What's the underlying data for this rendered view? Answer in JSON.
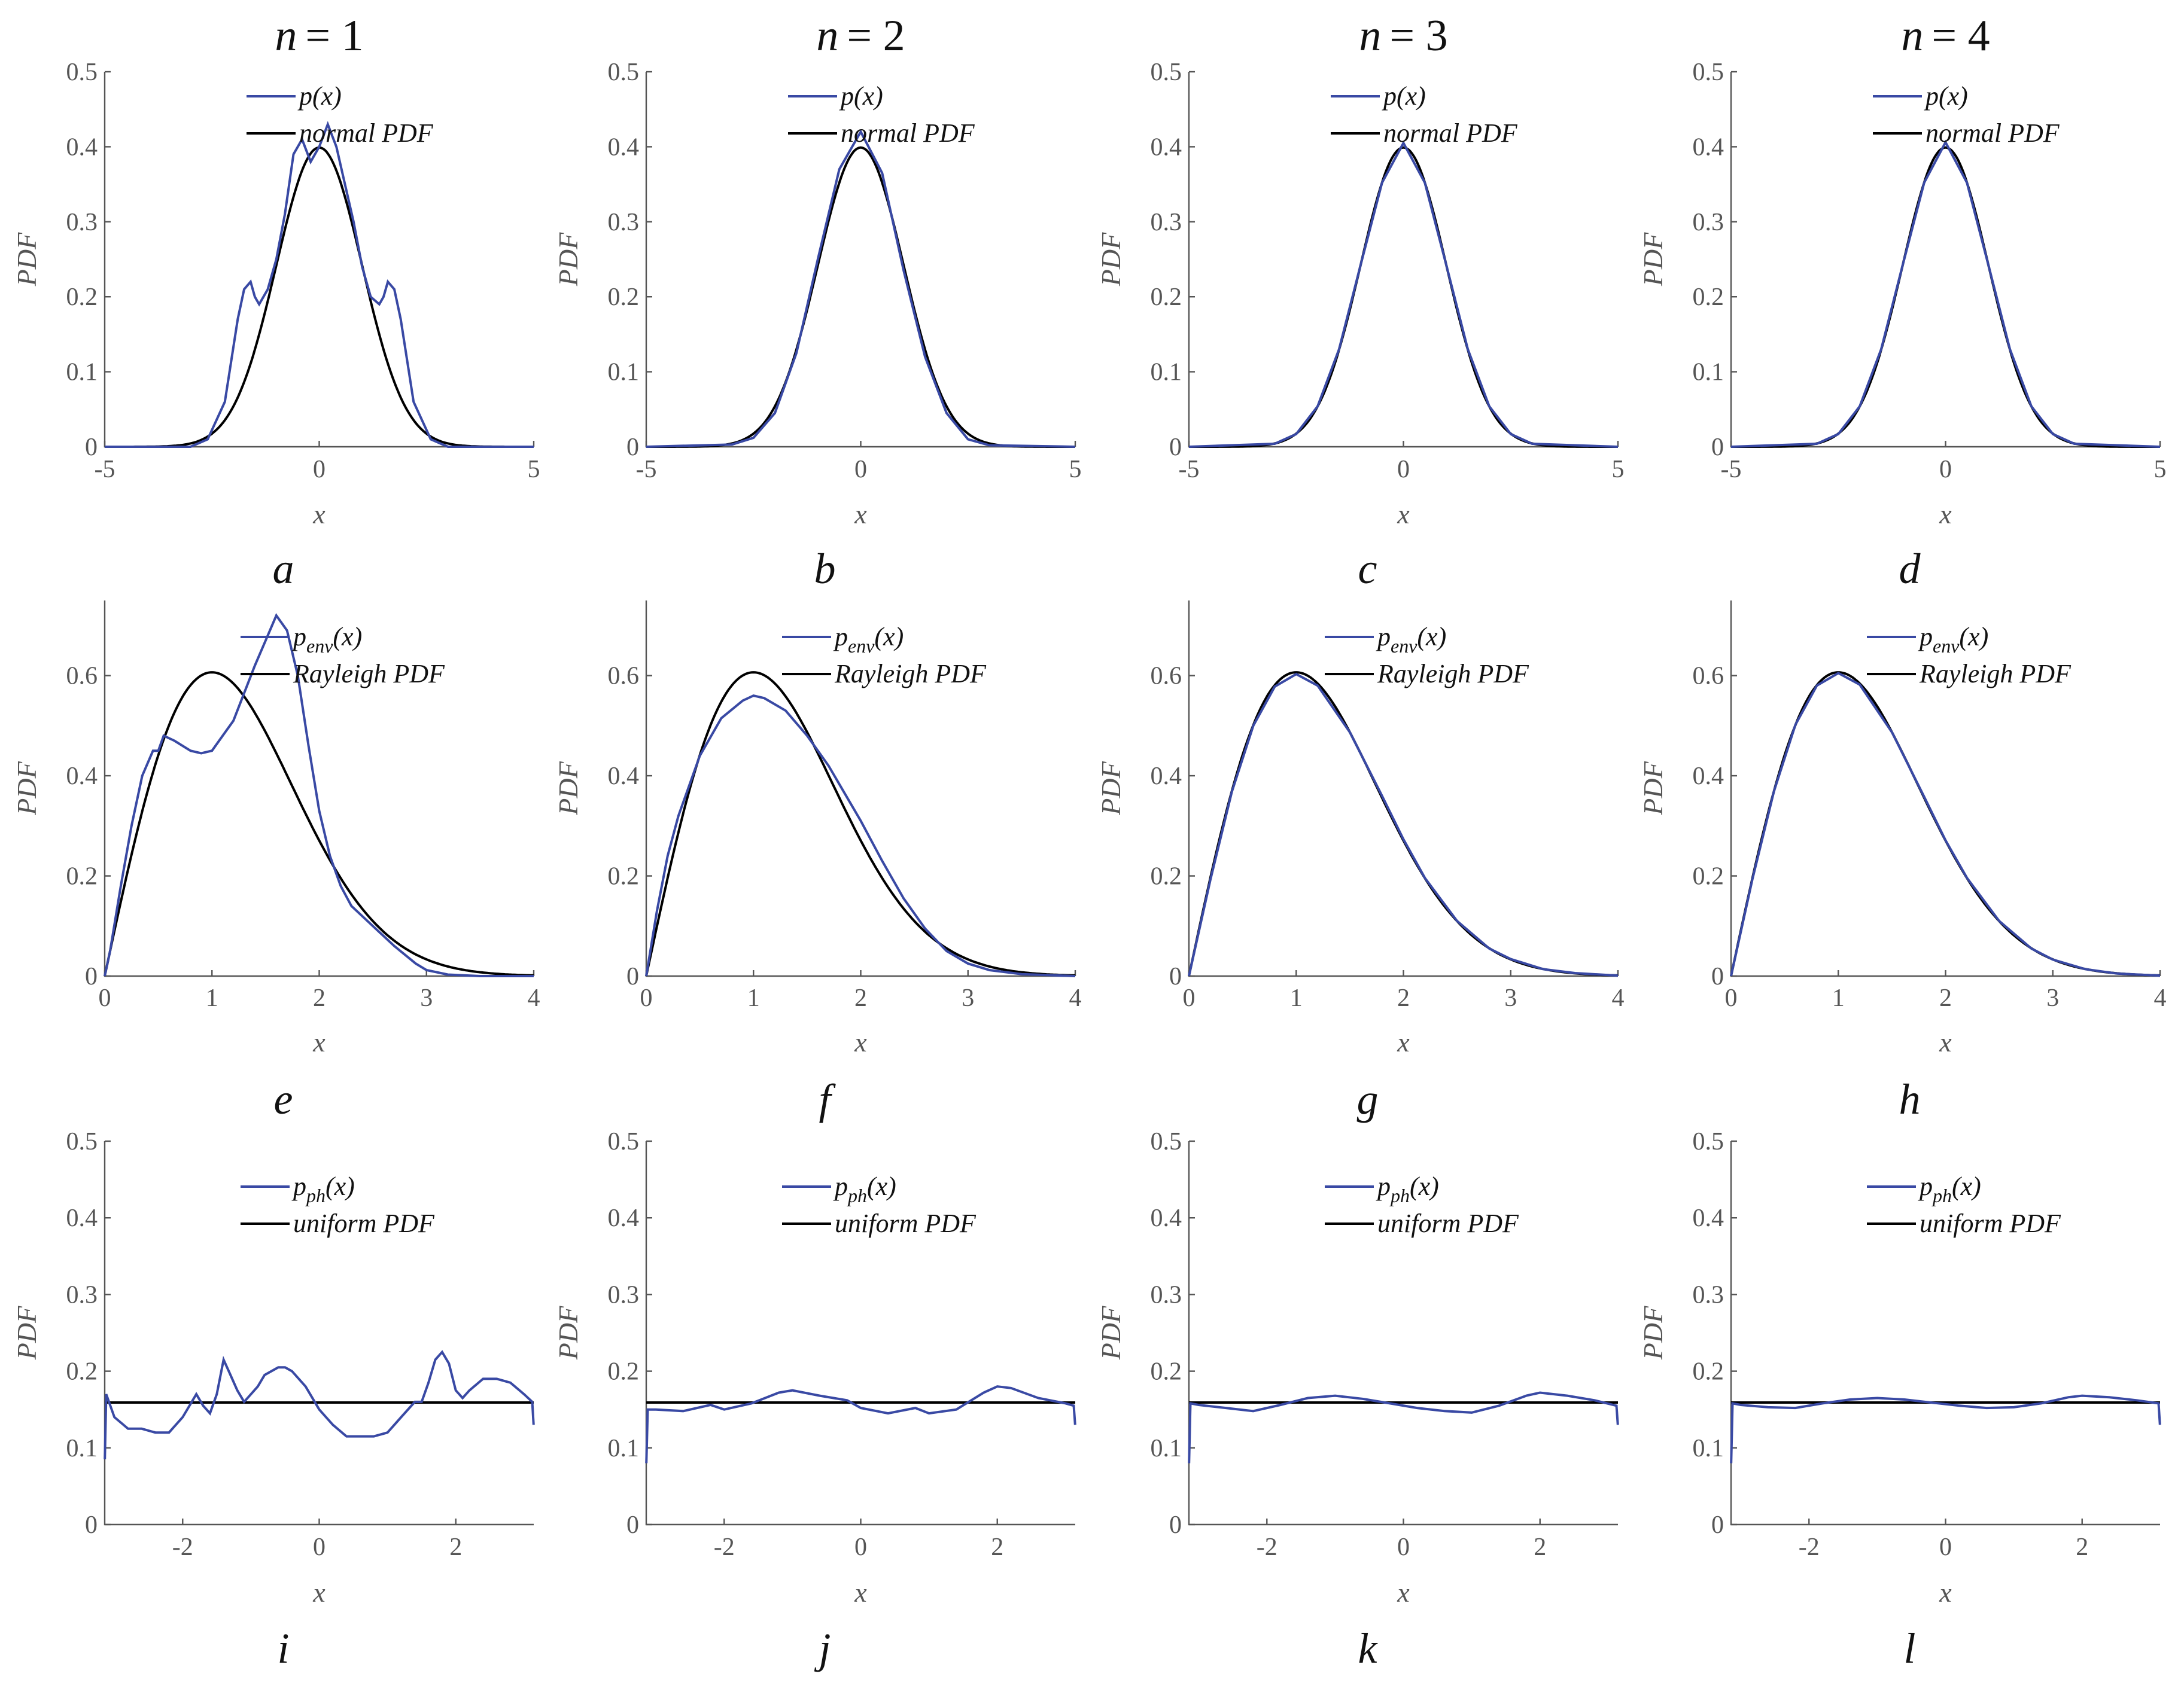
{
  "column_titles": [
    {
      "var": "n",
      "eq": "= 1"
    },
    {
      "var": "n",
      "eq": "= 2"
    },
    {
      "var": "n",
      "eq": "= 3"
    },
    {
      "var": "n",
      "eq": "= 4"
    }
  ],
  "colors": {
    "empirical": "#3949a4",
    "theoretical": "#000000",
    "axis": "#555555"
  },
  "chart_data": [
    {
      "type": "line",
      "panel": "a",
      "row": 0,
      "col": 0,
      "n": 1,
      "xlabel": "x",
      "ylabel": "PDF",
      "xlim": [
        -5,
        5
      ],
      "ylim": [
        0,
        0.5
      ],
      "xticks": [
        "-5",
        "0",
        "5"
      ],
      "yticks": [
        "0",
        "0.1",
        "0.2",
        "0.3",
        "0.4",
        "0.5"
      ],
      "legend_position": "top-center",
      "series": [
        {
          "name": "p(x)",
          "color": "#3949a4",
          "x": [
            -5,
            -3,
            -2.6,
            -2.2,
            -1.9,
            -1.75,
            -1.6,
            -1.5,
            -1.4,
            -1.2,
            -1.0,
            -0.8,
            -0.6,
            -0.4,
            -0.2,
            0,
            0.2,
            0.4,
            0.6,
            0.8,
            1.0,
            1.2,
            1.4,
            1.5,
            1.6,
            1.75,
            1.9,
            2.2,
            2.6,
            3,
            5
          ],
          "y": [
            0,
            0,
            0.01,
            0.06,
            0.17,
            0.21,
            0.22,
            0.2,
            0.19,
            0.21,
            0.25,
            0.31,
            0.39,
            0.41,
            0.38,
            0.4,
            0.43,
            0.4,
            0.35,
            0.3,
            0.24,
            0.2,
            0.19,
            0.2,
            0.22,
            0.21,
            0.17,
            0.06,
            0.01,
            0,
            0
          ]
        },
        {
          "name": "normal PDF",
          "color": "#000000",
          "function": "normal"
        }
      ]
    },
    {
      "type": "line",
      "panel": "b",
      "row": 0,
      "col": 1,
      "n": 2,
      "xlabel": "x",
      "ylabel": "PDF",
      "xlim": [
        -5,
        5
      ],
      "ylim": [
        0,
        0.5
      ],
      "xticks": [
        "-5",
        "0",
        "5"
      ],
      "yticks": [
        "0",
        "0.1",
        "0.2",
        "0.3",
        "0.4",
        "0.5"
      ],
      "legend_position": "top-center",
      "series": [
        {
          "name": "p(x)",
          "color": "#3949a4",
          "x": [
            -5,
            -3,
            -2.5,
            -2,
            -1.5,
            -1,
            -0.5,
            0,
            0.5,
            1,
            1.5,
            2,
            2.5,
            3,
            5
          ],
          "y": [
            0,
            0.003,
            0.012,
            0.045,
            0.125,
            0.25,
            0.37,
            0.42,
            0.365,
            0.235,
            0.12,
            0.045,
            0.01,
            0.002,
            0
          ]
        },
        {
          "name": "normal PDF",
          "color": "#000000",
          "function": "normal"
        }
      ]
    },
    {
      "type": "line",
      "panel": "c",
      "row": 0,
      "col": 2,
      "n": 3,
      "xlabel": "x",
      "ylabel": "PDF",
      "xlim": [
        -5,
        5
      ],
      "ylim": [
        0,
        0.5
      ],
      "xticks": [
        "-5",
        "0",
        "5"
      ],
      "yticks": [
        "0",
        "0.1",
        "0.2",
        "0.3",
        "0.4",
        "0.5"
      ],
      "legend_position": "top-center",
      "series": [
        {
          "name": "p(x)",
          "color": "#3949a4",
          "x": [
            -5,
            -3,
            -2.5,
            -2,
            -1.5,
            -1,
            -0.5,
            0,
            0.5,
            1,
            1.5,
            2,
            2.5,
            3,
            5
          ],
          "y": [
            0,
            0.004,
            0.017,
            0.054,
            0.13,
            0.242,
            0.352,
            0.405,
            0.352,
            0.242,
            0.13,
            0.054,
            0.017,
            0.004,
            0
          ]
        },
        {
          "name": "normal PDF",
          "color": "#000000",
          "function": "normal"
        }
      ]
    },
    {
      "type": "line",
      "panel": "d",
      "row": 0,
      "col": 3,
      "n": 4,
      "xlabel": "x",
      "ylabel": "PDF",
      "xlim": [
        -5,
        5
      ],
      "ylim": [
        0,
        0.5
      ],
      "xticks": [
        "-5",
        "0",
        "5"
      ],
      "yticks": [
        "0",
        "0.1",
        "0.2",
        "0.3",
        "0.4",
        "0.5"
      ],
      "legend_position": "top-center",
      "series": [
        {
          "name": "p(x)",
          "color": "#3949a4",
          "x": [
            -5,
            -3,
            -2.5,
            -2,
            -1.5,
            -1,
            -0.5,
            0,
            0.5,
            1,
            1.5,
            2,
            2.5,
            3,
            5
          ],
          "y": [
            0,
            0.004,
            0.017,
            0.054,
            0.13,
            0.242,
            0.352,
            0.406,
            0.352,
            0.242,
            0.13,
            0.054,
            0.017,
            0.004,
            0
          ]
        },
        {
          "name": "normal PDF",
          "color": "#000000",
          "function": "normal"
        }
      ]
    },
    {
      "type": "line",
      "panel": "e",
      "row": 1,
      "col": 0,
      "n": 1,
      "xlabel": "x",
      "ylabel": "PDF",
      "xlim": [
        0,
        4
      ],
      "ylim": [
        0,
        0.75
      ],
      "xticks": [
        "0",
        "1",
        "2",
        "3",
        "4"
      ],
      "yticks": [
        "0",
        "0.2",
        "0.4",
        "0.6"
      ],
      "legend_position": "top-right",
      "series": [
        {
          "name": "penv(x)",
          "label_main": "p",
          "label_sub": "env",
          "label_tail": "(x)",
          "color": "#3949a4",
          "x": [
            0,
            0.05,
            0.15,
            0.25,
            0.35,
            0.45,
            0.5,
            0.55,
            0.65,
            0.8,
            0.9,
            1.0,
            1.2,
            1.4,
            1.5,
            1.6,
            1.7,
            1.8,
            1.9,
            2.0,
            2.1,
            2.2,
            2.3,
            2.5,
            2.7,
            2.9,
            3.0,
            3.2,
            3.5,
            4.0
          ],
          "y": [
            0,
            0.05,
            0.18,
            0.3,
            0.4,
            0.45,
            0.45,
            0.48,
            0.47,
            0.45,
            0.445,
            0.45,
            0.51,
            0.62,
            0.67,
            0.72,
            0.69,
            0.6,
            0.46,
            0.33,
            0.24,
            0.18,
            0.14,
            0.1,
            0.06,
            0.025,
            0.012,
            0.003,
            0.0,
            0
          ]
        },
        {
          "name": "Rayleigh PDF",
          "color": "#000000",
          "function": "rayleigh"
        }
      ]
    },
    {
      "type": "line",
      "panel": "f",
      "row": 1,
      "col": 1,
      "n": 2,
      "xlabel": "x",
      "ylabel": "PDF",
      "xlim": [
        0,
        4
      ],
      "ylim": [
        0,
        0.75
      ],
      "xticks": [
        "0",
        "1",
        "2",
        "3",
        "4"
      ],
      "yticks": [
        "0",
        "0.2",
        "0.4",
        "0.6"
      ],
      "legend_position": "top-right",
      "series": [
        {
          "name": "penv(x)",
          "label_main": "p",
          "label_sub": "env",
          "label_tail": "(x)",
          "color": "#3949a4",
          "x": [
            0,
            0.1,
            0.2,
            0.3,
            0.5,
            0.7,
            0.9,
            1.0,
            1.1,
            1.3,
            1.5,
            1.7,
            2.0,
            2.2,
            2.4,
            2.6,
            2.8,
            3.0,
            3.2,
            3.5,
            4.0
          ],
          "y": [
            0,
            0.13,
            0.24,
            0.32,
            0.44,
            0.515,
            0.55,
            0.56,
            0.555,
            0.53,
            0.48,
            0.42,
            0.31,
            0.23,
            0.155,
            0.095,
            0.05,
            0.025,
            0.012,
            0.004,
            0
          ]
        },
        {
          "name": "Rayleigh PDF",
          "color": "#000000",
          "function": "rayleigh"
        }
      ]
    },
    {
      "type": "line",
      "panel": "g",
      "row": 1,
      "col": 2,
      "n": 3,
      "xlabel": "x",
      "ylabel": "PDF",
      "xlim": [
        0,
        4
      ],
      "ylim": [
        0,
        0.75
      ],
      "xticks": [
        "0",
        "1",
        "2",
        "3",
        "4"
      ],
      "yticks": [
        "0",
        "0.2",
        "0.4",
        "0.6"
      ],
      "legend_position": "top-right",
      "series": [
        {
          "name": "penv(x)",
          "label_main": "p",
          "label_sub": "env",
          "label_tail": "(x)",
          "color": "#3949a4",
          "x": [
            0,
            0.2,
            0.4,
            0.6,
            0.8,
            1.0,
            1.2,
            1.5,
            1.8,
            2.0,
            2.2,
            2.5,
            2.8,
            3.0,
            3.3,
            3.6,
            4.0
          ],
          "y": [
            0,
            0.192,
            0.368,
            0.5,
            0.578,
            0.603,
            0.58,
            0.487,
            0.36,
            0.273,
            0.196,
            0.11,
            0.055,
            0.034,
            0.014,
            0.006,
            0.001
          ]
        },
        {
          "name": "Rayleigh PDF",
          "color": "#000000",
          "function": "rayleigh"
        }
      ]
    },
    {
      "type": "line",
      "panel": "h",
      "row": 1,
      "col": 3,
      "n": 4,
      "xlabel": "x",
      "ylabel": "PDF",
      "xlim": [
        0,
        4
      ],
      "ylim": [
        0,
        0.75
      ],
      "xticks": [
        "0",
        "1",
        "2",
        "3",
        "4"
      ],
      "yticks": [
        "0",
        "0.2",
        "0.4",
        "0.6"
      ],
      "legend_position": "top-right",
      "series": [
        {
          "name": "penv(x)",
          "label_main": "p",
          "label_sub": "env",
          "label_tail": "(x)",
          "color": "#3949a4",
          "x": [
            0,
            0.2,
            0.4,
            0.6,
            0.8,
            1.0,
            1.2,
            1.5,
            1.8,
            2.0,
            2.2,
            2.5,
            2.8,
            3.0,
            3.3,
            3.6,
            4.0
          ],
          "y": [
            0,
            0.194,
            0.369,
            0.502,
            0.58,
            0.605,
            0.582,
            0.487,
            0.358,
            0.271,
            0.196,
            0.11,
            0.055,
            0.033,
            0.014,
            0.005,
            0.001
          ]
        },
        {
          "name": "Rayleigh PDF",
          "color": "#000000",
          "function": "rayleigh"
        }
      ]
    },
    {
      "type": "line",
      "panel": "i",
      "row": 2,
      "col": 0,
      "n": 1,
      "xlabel": "x",
      "ylabel": "PDF",
      "xlim": [
        -3.14159,
        3.14159
      ],
      "ylim": [
        0,
        0.5
      ],
      "xticks": [
        "-2",
        "0",
        "2"
      ],
      "yticks": [
        "0",
        "0.1",
        "0.2",
        "0.3",
        "0.4",
        "0.5"
      ],
      "legend_position": "top-right",
      "series": [
        {
          "name": "pph(x)",
          "label_main": "p",
          "label_sub": "ph",
          "label_tail": "(x)",
          "color": "#3949a4",
          "x": [
            -3.14,
            -3.12,
            -3.0,
            -2.8,
            -2.6,
            -2.4,
            -2.2,
            -2.0,
            -1.8,
            -1.7,
            -1.6,
            -1.5,
            -1.4,
            -1.3,
            -1.2,
            -1.1,
            -1.0,
            -0.9,
            -0.8,
            -0.6,
            -0.5,
            -0.4,
            -0.2,
            0.0,
            0.2,
            0.4,
            0.6,
            0.8,
            1.0,
            1.2,
            1.4,
            1.5,
            1.6,
            1.7,
            1.8,
            1.9,
            2.0,
            2.1,
            2.2,
            2.4,
            2.6,
            2.8,
            3.0,
            3.12,
            3.14
          ],
          "y": [
            0.085,
            0.17,
            0.14,
            0.125,
            0.125,
            0.12,
            0.12,
            0.14,
            0.17,
            0.155,
            0.145,
            0.17,
            0.215,
            0.195,
            0.175,
            0.16,
            0.17,
            0.18,
            0.195,
            0.205,
            0.205,
            0.2,
            0.18,
            0.15,
            0.13,
            0.115,
            0.115,
            0.115,
            0.12,
            0.14,
            0.16,
            0.16,
            0.185,
            0.215,
            0.225,
            0.21,
            0.175,
            0.165,
            0.175,
            0.19,
            0.19,
            0.185,
            0.17,
            0.16,
            0.13
          ]
        },
        {
          "name": "uniform PDF",
          "color": "#000000",
          "function": "uniform"
        }
      ]
    },
    {
      "type": "line",
      "panel": "j",
      "row": 2,
      "col": 1,
      "n": 2,
      "xlabel": "x",
      "ylabel": "PDF",
      "xlim": [
        -3.14159,
        3.14159
      ],
      "ylim": [
        0,
        0.5
      ],
      "xticks": [
        "-2",
        "0",
        "2"
      ],
      "yticks": [
        "0",
        "0.1",
        "0.2",
        "0.3",
        "0.4",
        "0.5"
      ],
      "legend_position": "top-right",
      "series": [
        {
          "name": "pph(x)",
          "label_main": "p",
          "label_sub": "ph",
          "label_tail": "(x)",
          "color": "#3949a4",
          "x": [
            -3.14,
            -3.12,
            -3.0,
            -2.6,
            -2.2,
            -2.0,
            -1.6,
            -1.2,
            -1.0,
            -0.6,
            -0.2,
            0.0,
            0.4,
            0.8,
            1.0,
            1.4,
            1.8,
            2.0,
            2.2,
            2.6,
            3.0,
            3.12,
            3.14
          ],
          "y": [
            0.08,
            0.15,
            0.15,
            0.148,
            0.156,
            0.15,
            0.158,
            0.172,
            0.175,
            0.168,
            0.162,
            0.152,
            0.145,
            0.152,
            0.145,
            0.15,
            0.172,
            0.18,
            0.178,
            0.165,
            0.158,
            0.155,
            0.13
          ]
        },
        {
          "name": "uniform PDF",
          "color": "#000000",
          "function": "uniform"
        }
      ]
    },
    {
      "type": "line",
      "panel": "k",
      "row": 2,
      "col": 2,
      "n": 3,
      "xlabel": "x",
      "ylabel": "PDF",
      "xlim": [
        -3.14159,
        3.14159
      ],
      "ylim": [
        0,
        0.5
      ],
      "xticks": [
        "-2",
        "0",
        "2"
      ],
      "yticks": [
        "0",
        "0.1",
        "0.2",
        "0.3",
        "0.4",
        "0.5"
      ],
      "legend_position": "top-right",
      "series": [
        {
          "name": "pph(x)",
          "label_main": "p",
          "label_sub": "ph",
          "label_tail": "(x)",
          "color": "#3949a4",
          "x": [
            -3.14,
            -3.12,
            -3.0,
            -2.6,
            -2.2,
            -1.8,
            -1.4,
            -1.0,
            -0.6,
            -0.2,
            0.2,
            0.6,
            1.0,
            1.4,
            1.8,
            2.0,
            2.4,
            2.8,
            3.12,
            3.14
          ],
          "y": [
            0.08,
            0.158,
            0.156,
            0.152,
            0.148,
            0.156,
            0.165,
            0.168,
            0.164,
            0.158,
            0.152,
            0.148,
            0.146,
            0.155,
            0.168,
            0.172,
            0.168,
            0.162,
            0.155,
            0.13
          ]
        },
        {
          "name": "uniform PDF",
          "color": "#000000",
          "function": "uniform"
        }
      ]
    },
    {
      "type": "line",
      "panel": "l",
      "row": 2,
      "col": 3,
      "n": 4,
      "xlabel": "x",
      "ylabel": "PDF",
      "xlim": [
        -3.14159,
        3.14159
      ],
      "ylim": [
        0,
        0.5
      ],
      "xticks": [
        "-2",
        "0",
        "2"
      ],
      "yticks": [
        "0",
        "0.1",
        "0.2",
        "0.3",
        "0.4",
        "0.5"
      ],
      "legend_position": "top-right",
      "series": [
        {
          "name": "pph(x)",
          "label_main": "p",
          "label_sub": "ph",
          "label_tail": "(x)",
          "color": "#3949a4",
          "x": [
            -3.14,
            -3.12,
            -3.0,
            -2.6,
            -2.2,
            -1.8,
            -1.4,
            -1.0,
            -0.6,
            -0.2,
            0.2,
            0.6,
            1.0,
            1.4,
            1.8,
            2.0,
            2.4,
            2.8,
            3.12,
            3.14
          ],
          "y": [
            0.08,
            0.158,
            0.156,
            0.153,
            0.152,
            0.158,
            0.163,
            0.165,
            0.163,
            0.159,
            0.155,
            0.152,
            0.153,
            0.158,
            0.166,
            0.168,
            0.166,
            0.162,
            0.158,
            0.13
          ]
        },
        {
          "name": "uniform PDF",
          "color": "#000000",
          "function": "uniform"
        }
      ]
    }
  ]
}
